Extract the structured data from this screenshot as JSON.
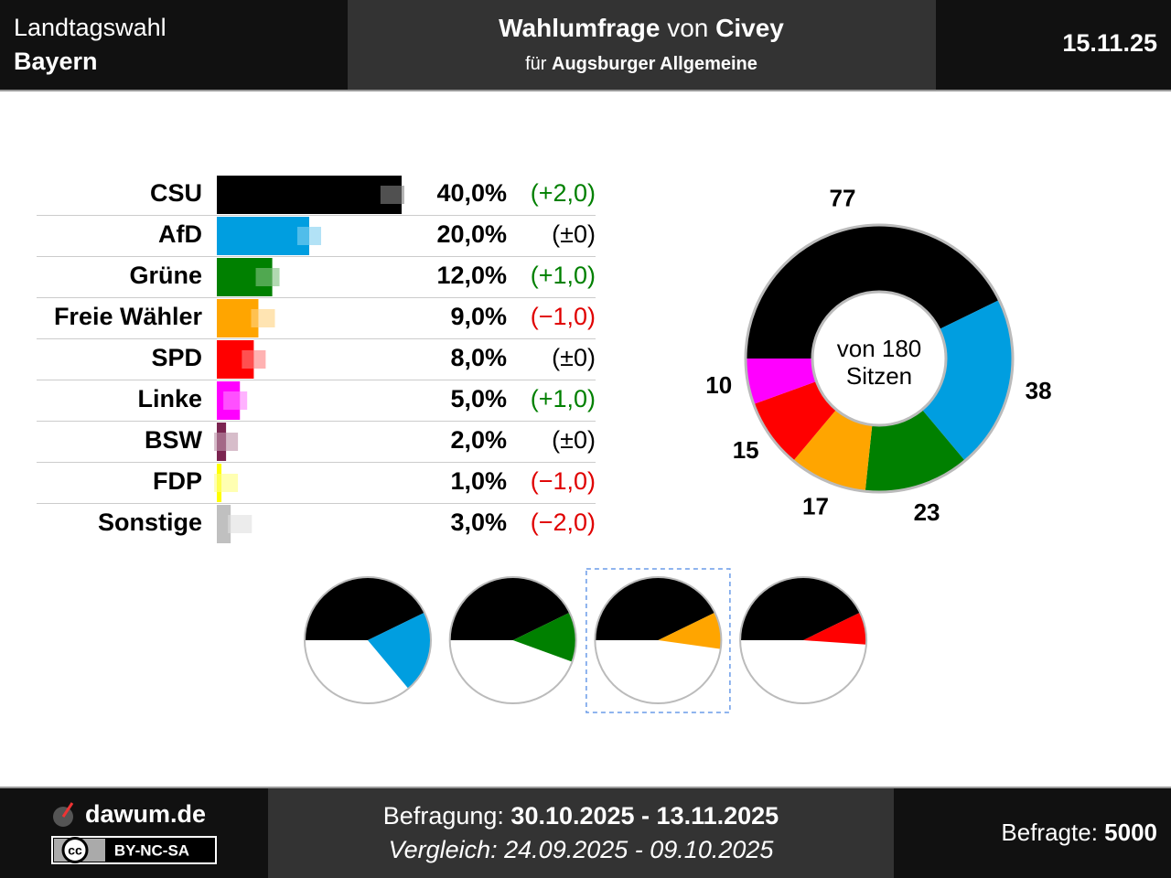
{
  "header": {
    "election_line1": "Landtagswahl",
    "election_line2": "Bayern",
    "title_bold1": "Wahlumfrage",
    "title_normal": "von",
    "title_bold2": "Civey",
    "subtitle_normal": "für",
    "subtitle_bold": "Augsburger Allgemeine",
    "date": "15.11.25"
  },
  "chart_data": [
    {
      "type": "bar",
      "orientation": "horizontal",
      "categories": [
        "CSU",
        "AfD",
        "Grüne",
        "Freie Wähler",
        "SPD",
        "Linke",
        "BSW",
        "FDP",
        "Sonstige"
      ],
      "colors": [
        "#000000",
        "#009ee0",
        "#008000",
        "#ffa500",
        "#ff0000",
        "#ff00ff",
        "#7b2450",
        "#ffff00",
        "#c0c0c0"
      ],
      "values": [
        40.0,
        20.0,
        12.0,
        9.0,
        8.0,
        5.0,
        2.0,
        1.0,
        3.0
      ],
      "value_labels": [
        "40,0%",
        "20,0%",
        "12,0%",
        "9,0%",
        "8,0%",
        "5,0%",
        "2,0%",
        "1,0%",
        "3,0%"
      ],
      "previous_values": [
        38.0,
        20.0,
        11.0,
        10.0,
        8.0,
        4.0,
        2.0,
        2.0,
        5.0
      ],
      "changes": [
        2.0,
        0,
        1.0,
        -1.0,
        0,
        1.0,
        0,
        -1.0,
        -2.0
      ],
      "change_labels": [
        "(+2,0)",
        "(±0)",
        "(+1,0)",
        "(−1,0)",
        "(±0)",
        "(+1,0)",
        "(±0)",
        "(−1,0)",
        "(−2,0)"
      ]
    },
    {
      "type": "donut",
      "values": [
        77,
        38,
        23,
        17,
        15,
        10
      ],
      "colors": [
        "#000000",
        "#009ee0",
        "#008000",
        "#ffa500",
        "#ff0000",
        "#ff00ff"
      ],
      "center_label": [
        "von 180",
        "Sitzen"
      ]
    },
    {
      "type": "pie-grid",
      "pies": [
        {
          "values": [
            77,
            38
          ],
          "colors": [
            "#000000",
            "#009ee0"
          ]
        },
        {
          "values": [
            77,
            23
          ],
          "colors": [
            "#000000",
            "#008000"
          ]
        },
        {
          "values": [
            77,
            17
          ],
          "colors": [
            "#000000",
            "#ffa500"
          ]
        },
        {
          "values": [
            77,
            15
          ],
          "colors": [
            "#000000",
            "#ff0000"
          ]
        }
      ],
      "selected": 2
    }
  ],
  "footer": {
    "site": "dawum.de",
    "cc": "cc",
    "license": "BY-NC-SA",
    "survey_label": "Befragung:",
    "survey_period": "30.10.2025 - 13.11.2025",
    "comparison": "Vergleich: 24.09.2025 - 09.10.2025",
    "respondents_label": "Befragte:",
    "respondents": "5000"
  }
}
